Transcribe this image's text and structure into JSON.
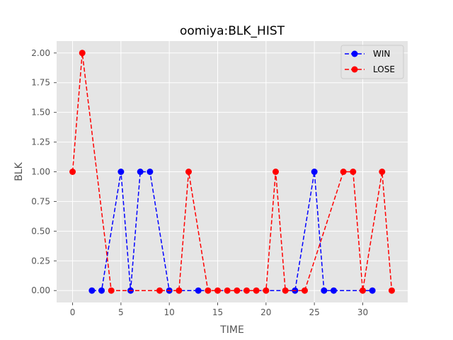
{
  "chart_data": {
    "type": "line",
    "title": "oomiya:BLK_HIST",
    "xlabel": "TIME",
    "ylabel": "BLK",
    "xlim": [
      -1.65,
      34.65
    ],
    "ylim": [
      -0.1,
      2.1
    ],
    "xticks": [
      0,
      5,
      10,
      15,
      20,
      25,
      30
    ],
    "yticks": [
      0.0,
      0.25,
      0.5,
      0.75,
      1.0,
      1.25,
      1.5,
      1.75,
      2.0
    ],
    "ytick_labels": [
      "0.00",
      "0.25",
      "0.50",
      "0.75",
      "1.00",
      "1.25",
      "1.50",
      "1.75",
      "2.00"
    ],
    "grid": true,
    "legend": "top-right",
    "series": [
      {
        "name": "WIN",
        "color": "#0000ff",
        "linestyle": "dashed",
        "marker": "circle",
        "x": [
          2,
          3,
          5,
          6,
          7,
          8,
          10,
          13,
          23,
          25,
          26,
          27,
          31
        ],
        "y": [
          0,
          0,
          1,
          0,
          1,
          1,
          0,
          0,
          0,
          1,
          0,
          0,
          0
        ]
      },
      {
        "name": "LOSE",
        "color": "#ff0000",
        "linestyle": "dashed",
        "marker": "circle",
        "x": [
          0,
          1,
          4,
          9,
          11,
          12,
          14,
          15,
          16,
          17,
          18,
          19,
          20,
          21,
          22,
          24,
          28,
          29,
          30,
          32,
          33
        ],
        "y": [
          1,
          2,
          0,
          0,
          0,
          1,
          0,
          0,
          0,
          0,
          0,
          0,
          0,
          1,
          0,
          0,
          1,
          1,
          0,
          1,
          0
        ]
      }
    ]
  }
}
